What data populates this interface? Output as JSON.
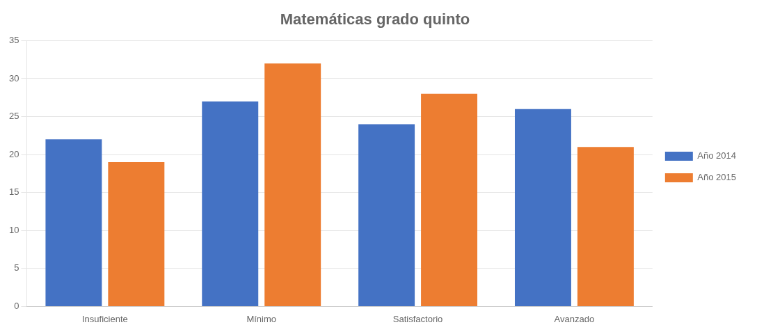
{
  "chart_data": {
    "type": "bar",
    "title": "Matemáticas grado quinto",
    "categories": [
      "Insuficiente",
      "Mínimo",
      "Satisfactorio",
      "Avanzado"
    ],
    "series": [
      {
        "name": "Año 2014",
        "color": "#4472C4",
        "values": [
          22,
          27,
          24,
          26
        ]
      },
      {
        "name": "Año 2015",
        "color": "#ED7D31",
        "values": [
          19,
          32,
          28,
          21
        ]
      }
    ],
    "ylim": [
      0,
      35
    ],
    "yticks": [
      0,
      5,
      10,
      15,
      20,
      25,
      30,
      35
    ],
    "grid": true,
    "legend": "right"
  }
}
